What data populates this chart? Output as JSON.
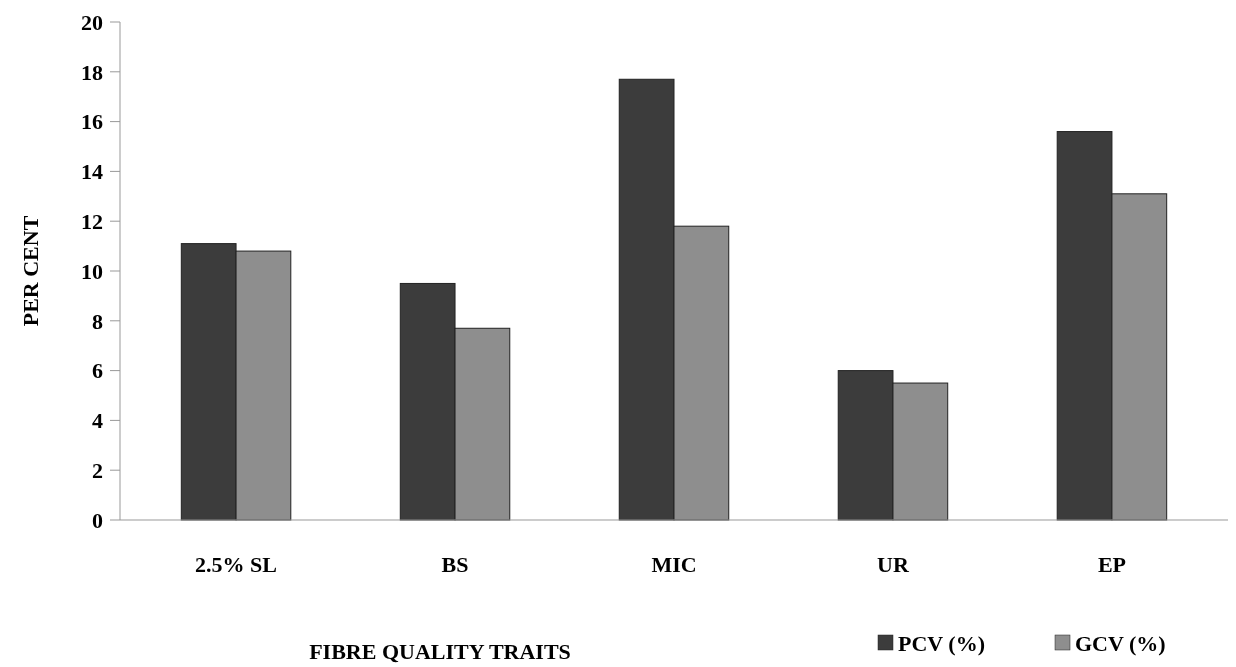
{
  "chart_data": {
    "type": "bar",
    "xlabel": "FIBRE QUALITY TRAITS",
    "ylabel": "PER CENT",
    "categories": [
      "2.5% SL",
      "BS",
      "MIC",
      "UR",
      "EP"
    ],
    "series": [
      {
        "name": "PCV (%)",
        "color": "#3c3c3c",
        "values": [
          11.1,
          9.5,
          17.7,
          6.0,
          15.6
        ]
      },
      {
        "name": "GCV (%)",
        "color": "#8e8e8e",
        "values": [
          10.8,
          7.7,
          11.8,
          5.5,
          13.1
        ]
      }
    ],
    "ylim": [
      0,
      20
    ],
    "yticks": [
      0,
      2,
      4,
      6,
      8,
      10,
      12,
      14,
      16,
      18,
      20
    ],
    "grid": false,
    "legend": "bottom right"
  }
}
